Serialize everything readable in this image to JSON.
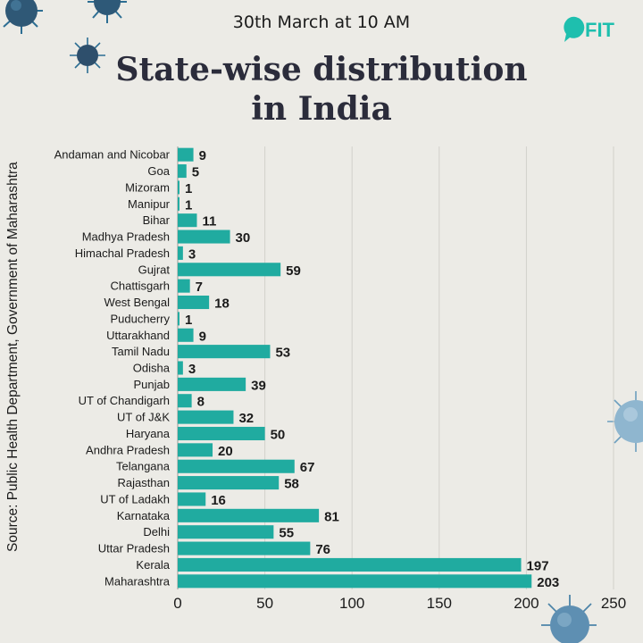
{
  "header": {
    "subtitle": "30th March at 10 AM",
    "title_line1": "State-wise distribution",
    "title_line2": "in India",
    "logo_text": "FIT"
  },
  "source": "Source: Public Health Department, Government of Maharashtra",
  "colors": {
    "bar": "#20aba0",
    "logo": "#1ebfae",
    "background": "#ecebe6",
    "title": "#2b2c3b"
  },
  "chart_data": {
    "type": "bar",
    "orientation": "horizontal",
    "categories": [
      "Andaman and Nicobar",
      "Goa",
      "Mizoram",
      "Manipur",
      "Bihar",
      "Madhya Pradesh",
      "Himachal Pradesh",
      "Gujrat",
      "Chattisgarh",
      "West Bengal",
      "Puducherry",
      "Uttarakhand",
      "Tamil Nadu",
      "Odisha",
      "Punjab",
      "UT of Chandigarh",
      "UT of J&K",
      "Haryana",
      "Andhra Pradesh",
      "Telangana",
      "Rajasthan",
      "UT of Ladakh",
      "Karnataka",
      "Delhi",
      "Uttar Pradesh",
      "Kerala",
      "Maharashtra"
    ],
    "values": [
      9,
      5,
      1,
      1,
      11,
      30,
      3,
      59,
      7,
      18,
      1,
      9,
      53,
      3,
      39,
      8,
      32,
      50,
      20,
      67,
      58,
      16,
      81,
      55,
      76,
      197,
      203
    ],
    "xlim": [
      0,
      250
    ],
    "xticks": [
      0,
      50,
      100,
      150,
      200,
      250
    ],
    "grid": true
  }
}
